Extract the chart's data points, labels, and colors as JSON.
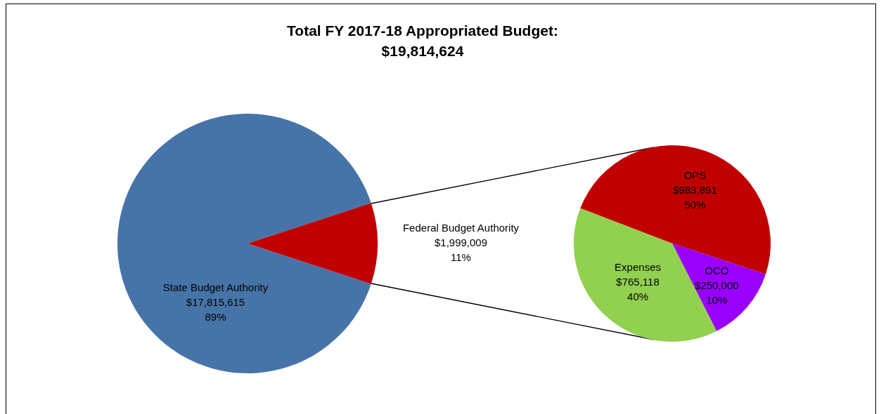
{
  "chart_data": [
    {
      "type": "pie",
      "title": "Total FY 2017-18 Appropriated Budget:",
      "subtitle": "$19,814,624",
      "categories": [
        "State Budget Authority",
        "Federal Budget Authority"
      ],
      "values": [
        17815615,
        1999009
      ],
      "colors": [
        "#4674a8",
        "#c00000"
      ],
      "value_labels": [
        "$17,815,615\n89%",
        "$1,999,009\n11%"
      ]
    },
    {
      "type": "pie",
      "categories": [
        "OPS",
        "OCO",
        "Expenses"
      ],
      "values": [
        983891,
        250000,
        765118
      ],
      "colors": [
        "#c00000",
        "#9900ff",
        "#92d050"
      ],
      "value_labels": [
        "$983,891\n50%",
        "$250,000\n10%",
        "$765,118\n40%"
      ]
    }
  ]
}
